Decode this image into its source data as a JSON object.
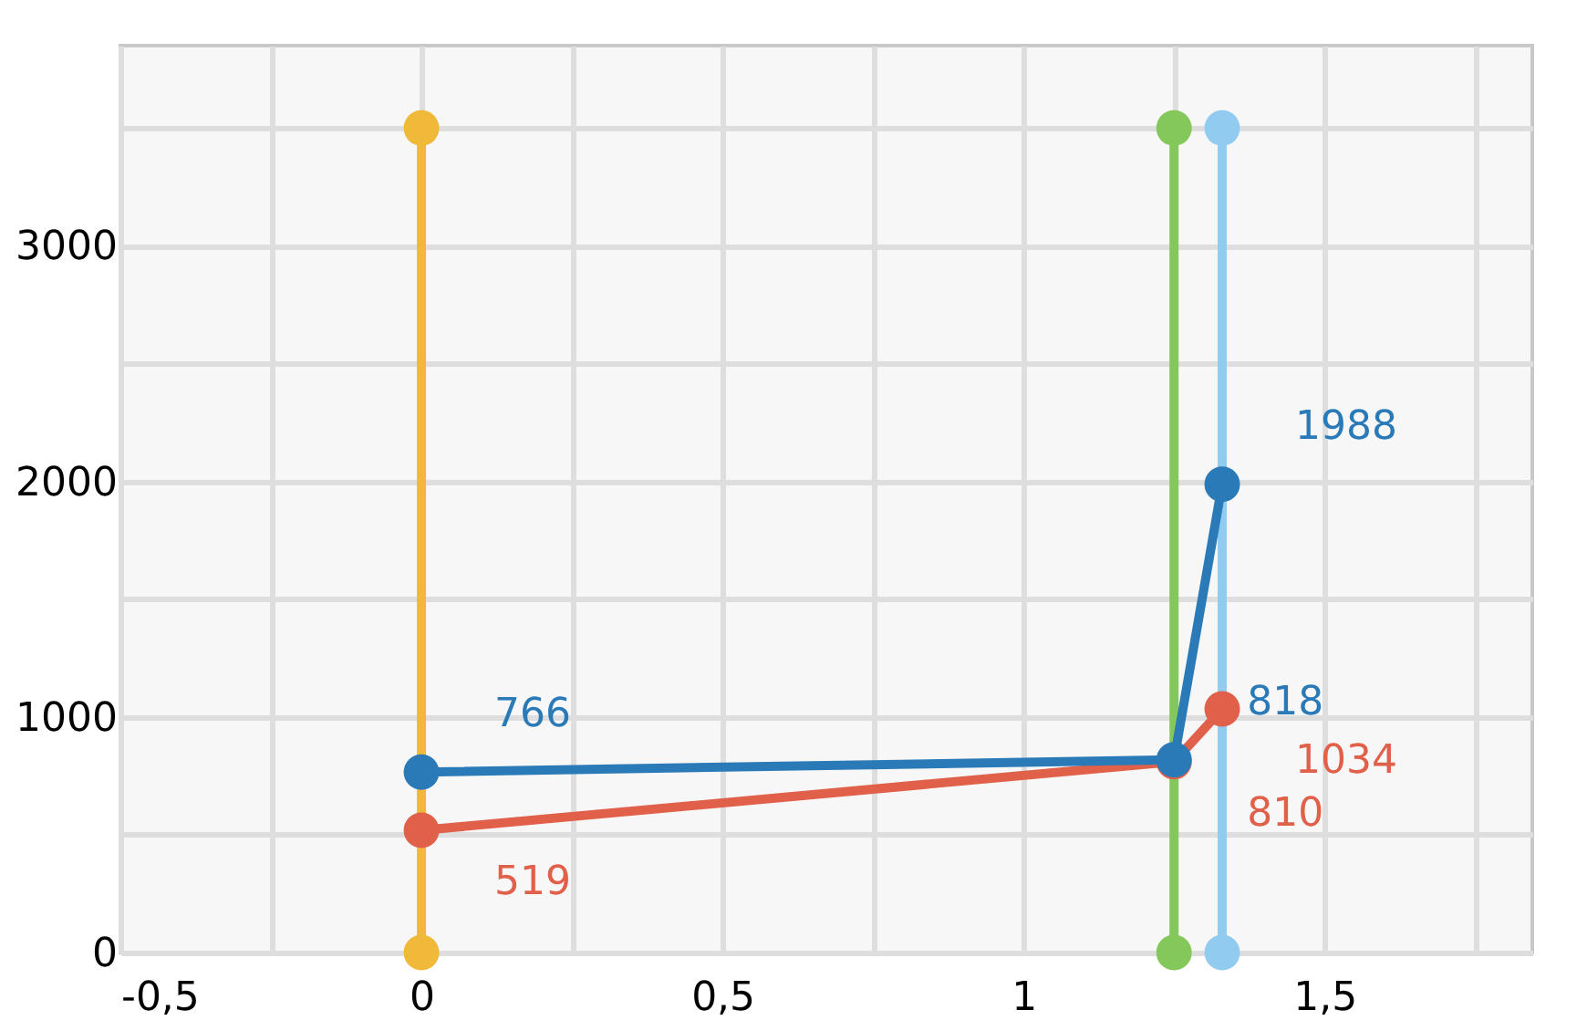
{
  "chart_data": {
    "type": "line",
    "marker": "circle",
    "grid": true,
    "line_style": "solid",
    "xlim": [
      -0.5,
      1.845
    ],
    "ylim": [
      0,
      3850
    ],
    "xticks": [
      {
        "value": -0.5,
        "label": "-0,5"
      },
      {
        "value": -0.25,
        "label": null
      },
      0,
      {
        "value": 0.25,
        "label": null
      },
      {
        "value": 0.5,
        "label": "0,5"
      },
      {
        "value": 0.75,
        "label": null
      },
      1,
      {
        "value": 1.25,
        "label": null
      },
      {
        "value": 1.5,
        "label": "1,5"
      },
      {
        "value": 1.75,
        "label": null
      }
    ],
    "yticks": [
      0,
      {
        "value": 500,
        "label": null
      },
      1000,
      {
        "value": 1500,
        "label": null
      },
      2000,
      {
        "value": 2500,
        "label": null
      },
      3000,
      {
        "value": 3500,
        "label": null
      }
    ],
    "series": [
      {
        "color": "#f0b93a",
        "x": [
          0,
          0
        ],
        "values": [
          0,
          3500
        ]
      },
      {
        "color": "#84c75a",
        "x": [
          1.25,
          1.25
        ],
        "values": [
          0,
          3500
        ]
      },
      {
        "color": "#92cbf0",
        "x": [
          1.33,
          1.33
        ],
        "values": [
          0,
          3500
        ]
      },
      {
        "color": "#e0604a",
        "x": [
          0,
          1.25,
          1.33
        ],
        "values": [
          519,
          810,
          1034
        ],
        "value_labels": [
          "519",
          "810",
          "1034"
        ]
      },
      {
        "color": "#2a7ab8",
        "x": [
          0,
          1.25,
          1.33
        ],
        "values": [
          766,
          818,
          1988
        ],
        "value_labels": [
          "766",
          "818",
          "1988"
        ]
      }
    ]
  }
}
